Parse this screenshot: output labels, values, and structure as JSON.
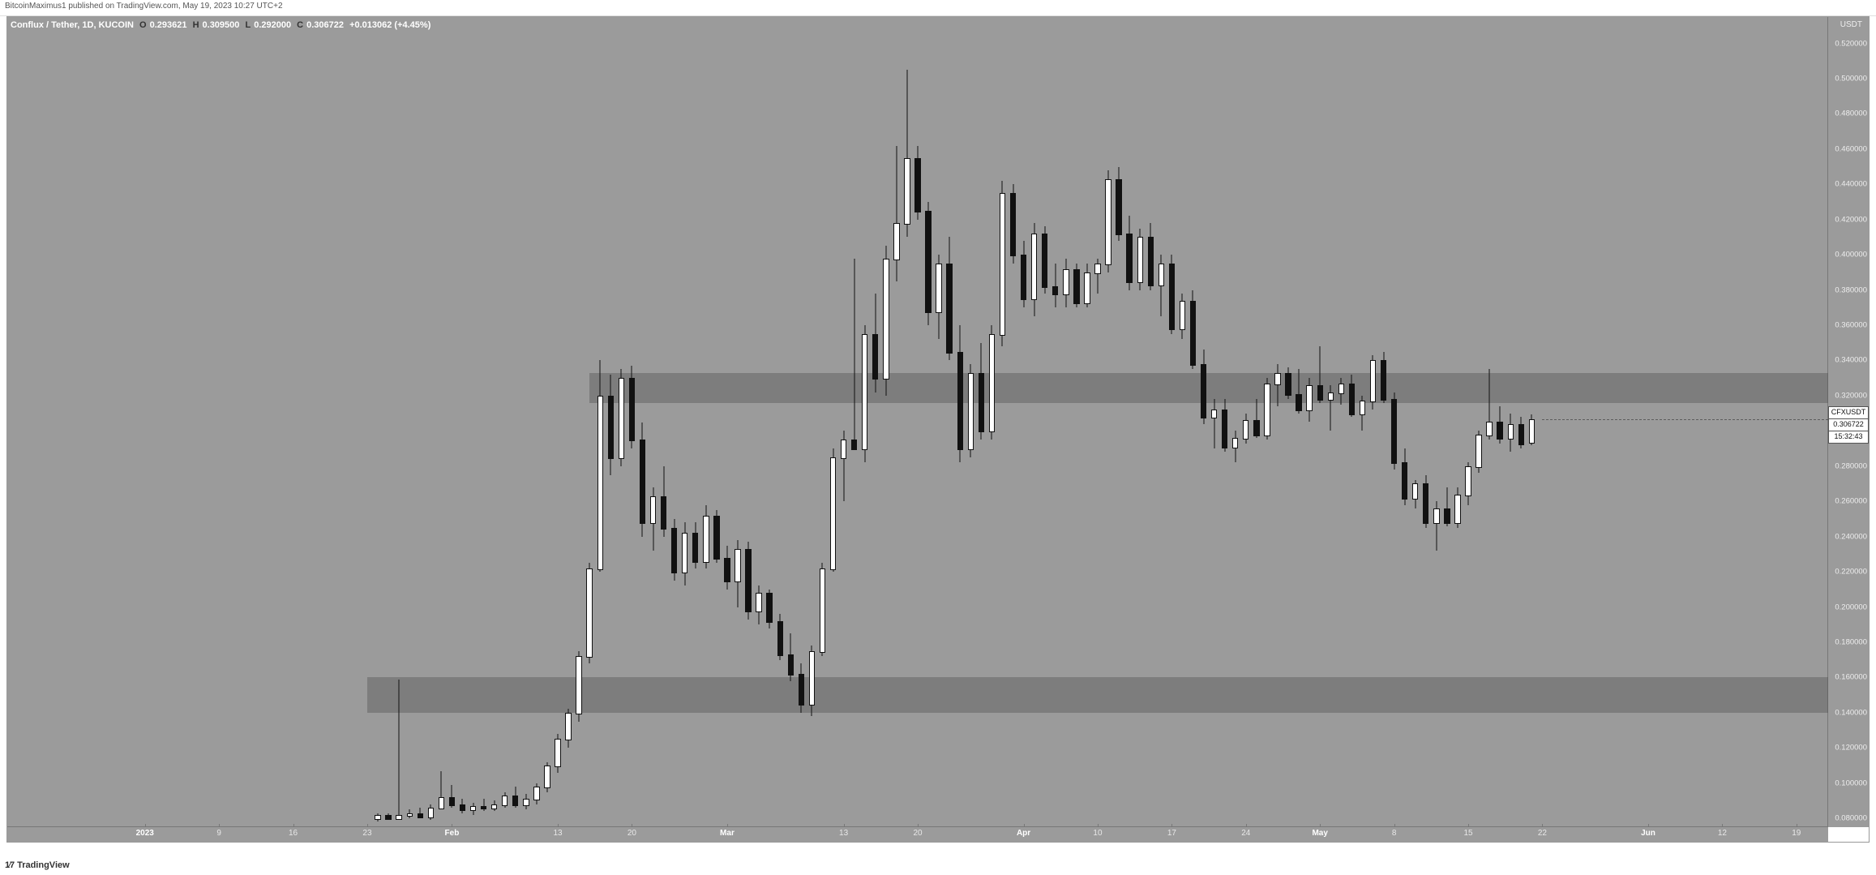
{
  "publish_line": "BitcoinMaximus1 published on TradingView.com, May 19, 2023 10:27 UTC+2",
  "legend": {
    "pair": "Conflux / Tether, 1D, KUCOIN",
    "O_lbl": "O",
    "O": "0.293621",
    "H_lbl": "H",
    "H": "0.309500",
    "L_lbl": "L",
    "L": "0.292000",
    "C_lbl": "C",
    "C": "0.306722",
    "change": "+0.013062 (+4.45%)"
  },
  "y_unit": "USDT",
  "price": {
    "symbol": "CFXUSDT",
    "value": "0.306722",
    "countdown": "15:32:43"
  },
  "brand": "TradingView",
  "chart": {
    "background_color": "#9b9b9b",
    "y_min": 0.075,
    "y_max": 0.535,
    "y_ticks": [
      0.08,
      0.1,
      0.12,
      0.14,
      0.16,
      0.18,
      0.2,
      0.22,
      0.24,
      0.26,
      0.28,
      0.3,
      0.32,
      0.34,
      0.36,
      0.38,
      0.4,
      0.42,
      0.44,
      0.46,
      0.48,
      0.5,
      0.52
    ],
    "x_start": 0,
    "x_end": 172,
    "x_ticks": [
      {
        "i": 13,
        "label": "2023",
        "bold": true
      },
      {
        "i": 20,
        "label": "9"
      },
      {
        "i": 27,
        "label": "16"
      },
      {
        "i": 34,
        "label": "23"
      },
      {
        "i": 42,
        "label": "Feb",
        "bold": true
      },
      {
        "i": 52,
        "label": "13"
      },
      {
        "i": 59,
        "label": "20"
      },
      {
        "i": 68,
        "label": "Mar",
        "bold": true
      },
      {
        "i": 79,
        "label": "13"
      },
      {
        "i": 86,
        "label": "20"
      },
      {
        "i": 96,
        "label": "Apr",
        "bold": true
      },
      {
        "i": 103,
        "label": "10"
      },
      {
        "i": 110,
        "label": "17"
      },
      {
        "i": 117,
        "label": "24"
      },
      {
        "i": 124,
        "label": "May",
        "bold": true
      },
      {
        "i": 131,
        "label": "8"
      },
      {
        "i": 138,
        "label": "15"
      },
      {
        "i": 145,
        "label": "22"
      },
      {
        "i": 155,
        "label": "Jun",
        "bold": true
      },
      {
        "i": 162,
        "label": "12"
      },
      {
        "i": 169,
        "label": "19"
      }
    ],
    "zones": [
      {
        "x_from": 34,
        "y_low": 0.14,
        "y_high": 0.16
      },
      {
        "x_from": 55,
        "y_low": 0.316,
        "y_high": 0.333
      }
    ],
    "candles": [
      {
        "i": 35,
        "o": 0.08,
        "h": 0.083,
        "l": 0.078,
        "c": 0.082
      },
      {
        "i": 36,
        "o": 0.082,
        "h": 0.083,
        "l": 0.079,
        "c": 0.08
      },
      {
        "i": 37,
        "o": 0.08,
        "h": 0.159,
        "l": 0.079,
        "c": 0.082
      },
      {
        "i": 38,
        "o": 0.082,
        "h": 0.085,
        "l": 0.08,
        "c": 0.083
      },
      {
        "i": 39,
        "o": 0.083,
        "h": 0.086,
        "l": 0.08,
        "c": 0.081
      },
      {
        "i": 40,
        "o": 0.081,
        "h": 0.088,
        "l": 0.079,
        "c": 0.086
      },
      {
        "i": 41,
        "o": 0.086,
        "h": 0.107,
        "l": 0.085,
        "c": 0.092
      },
      {
        "i": 42,
        "o": 0.092,
        "h": 0.099,
        "l": 0.086,
        "c": 0.088
      },
      {
        "i": 43,
        "o": 0.088,
        "h": 0.091,
        "l": 0.083,
        "c": 0.085
      },
      {
        "i": 44,
        "o": 0.085,
        "h": 0.089,
        "l": 0.082,
        "c": 0.087
      },
      {
        "i": 45,
        "o": 0.087,
        "h": 0.091,
        "l": 0.084,
        "c": 0.086
      },
      {
        "i": 46,
        "o": 0.086,
        "h": 0.09,
        "l": 0.084,
        "c": 0.088
      },
      {
        "i": 47,
        "o": 0.088,
        "h": 0.095,
        "l": 0.086,
        "c": 0.093
      },
      {
        "i": 48,
        "o": 0.093,
        "h": 0.098,
        "l": 0.086,
        "c": 0.088
      },
      {
        "i": 49,
        "o": 0.088,
        "h": 0.094,
        "l": 0.085,
        "c": 0.091
      },
      {
        "i": 50,
        "o": 0.091,
        "h": 0.1,
        "l": 0.088,
        "c": 0.098
      },
      {
        "i": 51,
        "o": 0.098,
        "h": 0.112,
        "l": 0.095,
        "c": 0.11
      },
      {
        "i": 52,
        "o": 0.11,
        "h": 0.128,
        "l": 0.106,
        "c": 0.125
      },
      {
        "i": 53,
        "o": 0.125,
        "h": 0.142,
        "l": 0.12,
        "c": 0.14
      },
      {
        "i": 54,
        "o": 0.14,
        "h": 0.175,
        "l": 0.135,
        "c": 0.172
      },
      {
        "i": 55,
        "o": 0.172,
        "h": 0.225,
        "l": 0.168,
        "c": 0.222
      },
      {
        "i": 56,
        "o": 0.222,
        "h": 0.34,
        "l": 0.22,
        "c": 0.32
      },
      {
        "i": 57,
        "o": 0.32,
        "h": 0.332,
        "l": 0.275,
        "c": 0.285
      },
      {
        "i": 58,
        "o": 0.285,
        "h": 0.335,
        "l": 0.28,
        "c": 0.33
      },
      {
        "i": 59,
        "o": 0.33,
        "h": 0.337,
        "l": 0.29,
        "c": 0.295
      },
      {
        "i": 60,
        "o": 0.295,
        "h": 0.305,
        "l": 0.24,
        "c": 0.248
      },
      {
        "i": 61,
        "o": 0.248,
        "h": 0.268,
        "l": 0.232,
        "c": 0.263
      },
      {
        "i": 62,
        "o": 0.263,
        "h": 0.28,
        "l": 0.24,
        "c": 0.245
      },
      {
        "i": 63,
        "o": 0.245,
        "h": 0.25,
        "l": 0.215,
        "c": 0.22
      },
      {
        "i": 64,
        "o": 0.22,
        "h": 0.248,
        "l": 0.212,
        "c": 0.242
      },
      {
        "i": 65,
        "o": 0.242,
        "h": 0.248,
        "l": 0.222,
        "c": 0.226
      },
      {
        "i": 66,
        "o": 0.226,
        "h": 0.258,
        "l": 0.222,
        "c": 0.252
      },
      {
        "i": 67,
        "o": 0.252,
        "h": 0.255,
        "l": 0.225,
        "c": 0.228
      },
      {
        "i": 68,
        "o": 0.228,
        "h": 0.235,
        "l": 0.21,
        "c": 0.215
      },
      {
        "i": 69,
        "o": 0.215,
        "h": 0.238,
        "l": 0.2,
        "c": 0.233
      },
      {
        "i": 70,
        "o": 0.233,
        "h": 0.237,
        "l": 0.193,
        "c": 0.198
      },
      {
        "i": 71,
        "o": 0.198,
        "h": 0.212,
        "l": 0.19,
        "c": 0.208
      },
      {
        "i": 72,
        "o": 0.208,
        "h": 0.21,
        "l": 0.188,
        "c": 0.192
      },
      {
        "i": 73,
        "o": 0.192,
        "h": 0.196,
        "l": 0.17,
        "c": 0.173
      },
      {
        "i": 74,
        "o": 0.173,
        "h": 0.185,
        "l": 0.158,
        "c": 0.162
      },
      {
        "i": 75,
        "o": 0.162,
        "h": 0.168,
        "l": 0.14,
        "c": 0.145
      },
      {
        "i": 76,
        "o": 0.145,
        "h": 0.178,
        "l": 0.138,
        "c": 0.175
      },
      {
        "i": 77,
        "o": 0.175,
        "h": 0.225,
        "l": 0.172,
        "c": 0.222
      },
      {
        "i": 78,
        "o": 0.222,
        "h": 0.29,
        "l": 0.22,
        "c": 0.285
      },
      {
        "i": 79,
        "o": 0.285,
        "h": 0.3,
        "l": 0.26,
        "c": 0.295
      },
      {
        "i": 80,
        "o": 0.295,
        "h": 0.398,
        "l": 0.29,
        "c": 0.29
      },
      {
        "i": 81,
        "o": 0.29,
        "h": 0.36,
        "l": 0.282,
        "c": 0.355
      },
      {
        "i": 82,
        "o": 0.355,
        "h": 0.378,
        "l": 0.322,
        "c": 0.33
      },
      {
        "i": 83,
        "o": 0.33,
        "h": 0.405,
        "l": 0.32,
        "c": 0.398
      },
      {
        "i": 84,
        "o": 0.398,
        "h": 0.462,
        "l": 0.385,
        "c": 0.418
      },
      {
        "i": 85,
        "o": 0.418,
        "h": 0.505,
        "l": 0.41,
        "c": 0.455
      },
      {
        "i": 86,
        "o": 0.455,
        "h": 0.462,
        "l": 0.42,
        "c": 0.425
      },
      {
        "i": 87,
        "o": 0.425,
        "h": 0.43,
        "l": 0.36,
        "c": 0.368
      },
      {
        "i": 88,
        "o": 0.368,
        "h": 0.4,
        "l": 0.352,
        "c": 0.395
      },
      {
        "i": 89,
        "o": 0.395,
        "h": 0.41,
        "l": 0.34,
        "c": 0.345
      },
      {
        "i": 90,
        "o": 0.345,
        "h": 0.36,
        "l": 0.282,
        "c": 0.29
      },
      {
        "i": 91,
        "o": 0.29,
        "h": 0.338,
        "l": 0.285,
        "c": 0.333
      },
      {
        "i": 92,
        "o": 0.333,
        "h": 0.35,
        "l": 0.295,
        "c": 0.3
      },
      {
        "i": 93,
        "o": 0.3,
        "h": 0.36,
        "l": 0.295,
        "c": 0.355
      },
      {
        "i": 94,
        "o": 0.355,
        "h": 0.442,
        "l": 0.348,
        "c": 0.435
      },
      {
        "i": 95,
        "o": 0.435,
        "h": 0.44,
        "l": 0.395,
        "c": 0.4
      },
      {
        "i": 96,
        "o": 0.4,
        "h": 0.408,
        "l": 0.37,
        "c": 0.375
      },
      {
        "i": 97,
        "o": 0.375,
        "h": 0.418,
        "l": 0.365,
        "c": 0.412
      },
      {
        "i": 98,
        "o": 0.412,
        "h": 0.416,
        "l": 0.378,
        "c": 0.382
      },
      {
        "i": 99,
        "o": 0.382,
        "h": 0.395,
        "l": 0.37,
        "c": 0.378
      },
      {
        "i": 100,
        "o": 0.378,
        "h": 0.398,
        "l": 0.37,
        "c": 0.392
      },
      {
        "i": 101,
        "o": 0.392,
        "h": 0.395,
        "l": 0.37,
        "c": 0.373
      },
      {
        "i": 102,
        "o": 0.373,
        "h": 0.395,
        "l": 0.37,
        "c": 0.39
      },
      {
        "i": 103,
        "o": 0.39,
        "h": 0.398,
        "l": 0.378,
        "c": 0.395
      },
      {
        "i": 104,
        "o": 0.395,
        "h": 0.448,
        "l": 0.39,
        "c": 0.443
      },
      {
        "i": 105,
        "o": 0.443,
        "h": 0.45,
        "l": 0.408,
        "c": 0.412
      },
      {
        "i": 106,
        "o": 0.412,
        "h": 0.422,
        "l": 0.38,
        "c": 0.385
      },
      {
        "i": 107,
        "o": 0.385,
        "h": 0.415,
        "l": 0.38,
        "c": 0.41
      },
      {
        "i": 108,
        "o": 0.41,
        "h": 0.418,
        "l": 0.38,
        "c": 0.383
      },
      {
        "i": 109,
        "o": 0.383,
        "h": 0.4,
        "l": 0.365,
        "c": 0.395
      },
      {
        "i": 110,
        "o": 0.395,
        "h": 0.4,
        "l": 0.355,
        "c": 0.358
      },
      {
        "i": 111,
        "o": 0.358,
        "h": 0.378,
        "l": 0.352,
        "c": 0.374
      },
      {
        "i": 112,
        "o": 0.374,
        "h": 0.38,
        "l": 0.335,
        "c": 0.338
      },
      {
        "i": 113,
        "o": 0.338,
        "h": 0.346,
        "l": 0.304,
        "c": 0.308
      },
      {
        "i": 114,
        "o": 0.308,
        "h": 0.318,
        "l": 0.29,
        "c": 0.312
      },
      {
        "i": 115,
        "o": 0.312,
        "h": 0.318,
        "l": 0.288,
        "c": 0.291
      },
      {
        "i": 116,
        "o": 0.291,
        "h": 0.3,
        "l": 0.282,
        "c": 0.296
      },
      {
        "i": 117,
        "o": 0.296,
        "h": 0.31,
        "l": 0.293,
        "c": 0.306
      },
      {
        "i": 118,
        "o": 0.306,
        "h": 0.318,
        "l": 0.296,
        "c": 0.298
      },
      {
        "i": 119,
        "o": 0.298,
        "h": 0.33,
        "l": 0.295,
        "c": 0.327
      },
      {
        "i": 120,
        "o": 0.327,
        "h": 0.338,
        "l": 0.314,
        "c": 0.333
      },
      {
        "i": 121,
        "o": 0.333,
        "h": 0.336,
        "l": 0.318,
        "c": 0.321
      },
      {
        "i": 122,
        "o": 0.321,
        "h": 0.335,
        "l": 0.31,
        "c": 0.312
      },
      {
        "i": 123,
        "o": 0.312,
        "h": 0.33,
        "l": 0.305,
        "c": 0.326
      },
      {
        "i": 124,
        "o": 0.326,
        "h": 0.348,
        "l": 0.316,
        "c": 0.318
      },
      {
        "i": 125,
        "o": 0.318,
        "h": 0.326,
        "l": 0.3,
        "c": 0.322
      },
      {
        "i": 126,
        "o": 0.322,
        "h": 0.33,
        "l": 0.315,
        "c": 0.327
      },
      {
        "i": 127,
        "o": 0.327,
        "h": 0.332,
        "l": 0.308,
        "c": 0.31
      },
      {
        "i": 128,
        "o": 0.31,
        "h": 0.32,
        "l": 0.3,
        "c": 0.317
      },
      {
        "i": 129,
        "o": 0.317,
        "h": 0.343,
        "l": 0.312,
        "c": 0.34
      },
      {
        "i": 130,
        "o": 0.34,
        "h": 0.345,
        "l": 0.316,
        "c": 0.318
      },
      {
        "i": 131,
        "o": 0.318,
        "h": 0.322,
        "l": 0.278,
        "c": 0.282
      },
      {
        "i": 132,
        "o": 0.282,
        "h": 0.29,
        "l": 0.258,
        "c": 0.262
      },
      {
        "i": 133,
        "o": 0.262,
        "h": 0.272,
        "l": 0.256,
        "c": 0.27
      },
      {
        "i": 134,
        "o": 0.27,
        "h": 0.275,
        "l": 0.245,
        "c": 0.248
      },
      {
        "i": 135,
        "o": 0.248,
        "h": 0.26,
        "l": 0.232,
        "c": 0.256
      },
      {
        "i": 136,
        "o": 0.256,
        "h": 0.268,
        "l": 0.246,
        "c": 0.248
      },
      {
        "i": 137,
        "o": 0.248,
        "h": 0.268,
        "l": 0.245,
        "c": 0.264
      },
      {
        "i": 138,
        "o": 0.264,
        "h": 0.282,
        "l": 0.258,
        "c": 0.28
      },
      {
        "i": 139,
        "o": 0.28,
        "h": 0.3,
        "l": 0.276,
        "c": 0.298
      },
      {
        "i": 140,
        "o": 0.298,
        "h": 0.335,
        "l": 0.295,
        "c": 0.305
      },
      {
        "i": 141,
        "o": 0.305,
        "h": 0.314,
        "l": 0.293,
        "c": 0.296
      },
      {
        "i": 142,
        "o": 0.296,
        "h": 0.31,
        "l": 0.288,
        "c": 0.304
      },
      {
        "i": 143,
        "o": 0.304,
        "h": 0.308,
        "l": 0.29,
        "c": 0.293
      },
      {
        "i": 144,
        "o": 0.293621,
        "h": 0.3095,
        "l": 0.292,
        "c": 0.306722
      }
    ]
  }
}
